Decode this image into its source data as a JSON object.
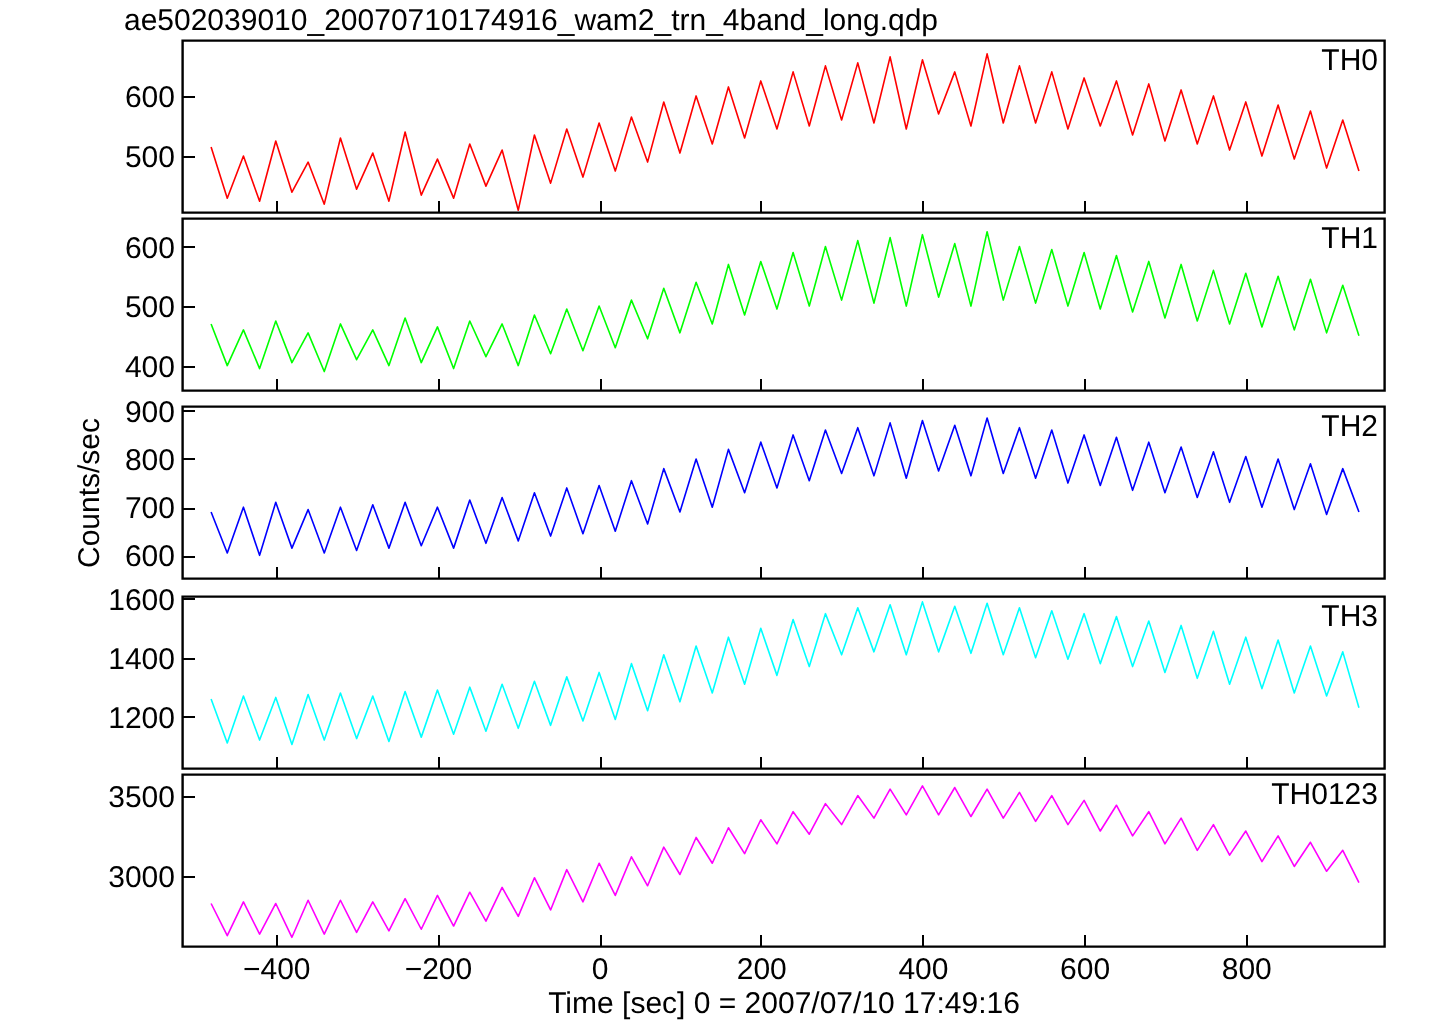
{
  "chart_data": [
    {
      "type": "line",
      "title": "ae502039010_20070710174916_wam2_trn_4band_long.qdp",
      "xlim": [
        -516,
        971
      ],
      "xticks": [
        -400,
        -200,
        0,
        200,
        400,
        600,
        800
      ],
      "ylim": [
        407,
        693
      ],
      "yticks": [
        500,
        600
      ],
      "tick_labels": "y",
      "x": [
        -480,
        -460,
        -440,
        -420,
        -400,
        -380,
        -360,
        -340,
        -320,
        -300,
        -280,
        -260,
        -240,
        -220,
        -200,
        -180,
        -160,
        -140,
        -120,
        -100,
        -80,
        -60,
        -40,
        -20,
        0,
        20,
        40,
        60,
        80,
        100,
        120,
        140,
        160,
        180,
        200,
        220,
        240,
        260,
        280,
        300,
        320,
        340,
        360,
        380,
        400,
        420,
        440,
        460,
        480,
        500,
        520,
        540,
        560,
        580,
        600,
        620,
        640,
        660,
        680,
        700,
        720,
        740,
        760,
        780,
        800,
        820,
        840,
        860,
        880,
        900,
        920,
        940
      ],
      "series": [
        {
          "name": "TH0",
          "color": "#ff0000",
          "values": [
            515,
            430,
            500,
            425,
            525,
            440,
            490,
            420,
            530,
            445,
            505,
            425,
            540,
            435,
            495,
            430,
            520,
            450,
            510,
            410,
            535,
            455,
            545,
            465,
            555,
            475,
            565,
            490,
            590,
            505,
            600,
            520,
            615,
            530,
            625,
            545,
            640,
            550,
            650,
            560,
            655,
            555,
            665,
            545,
            660,
            570,
            640,
            550,
            670,
            555,
            650,
            555,
            640,
            545,
            630,
            550,
            625,
            535,
            620,
            525,
            610,
            520,
            600,
            510,
            590,
            500,
            585,
            495,
            575,
            480,
            560,
            475
          ]
        }
      ]
    },
    {
      "type": "line",
      "xlim": [
        -516,
        971
      ],
      "xticks": [
        -400,
        -200,
        0,
        200,
        400,
        600,
        800
      ],
      "ylim": [
        359,
        648
      ],
      "yticks": [
        400,
        500,
        600
      ],
      "tick_labels": "y",
      "x": [
        -480,
        -460,
        -440,
        -420,
        -400,
        -380,
        -360,
        -340,
        -320,
        -300,
        -280,
        -260,
        -240,
        -220,
        -200,
        -180,
        -160,
        -140,
        -120,
        -100,
        -80,
        -60,
        -40,
        -20,
        0,
        20,
        40,
        60,
        80,
        100,
        120,
        140,
        160,
        180,
        200,
        220,
        240,
        260,
        280,
        300,
        320,
        340,
        360,
        380,
        400,
        420,
        440,
        460,
        480,
        500,
        520,
        540,
        560,
        580,
        600,
        620,
        640,
        660,
        680,
        700,
        720,
        740,
        760,
        780,
        800,
        820,
        840,
        860,
        880,
        900,
        920,
        940
      ],
      "series": [
        {
          "name": "TH1",
          "color": "#00ff00",
          "values": [
            470,
            400,
            460,
            395,
            475,
            405,
            455,
            390,
            470,
            410,
            460,
            400,
            480,
            405,
            465,
            395,
            475,
            415,
            470,
            400,
            485,
            420,
            495,
            425,
            500,
            430,
            510,
            445,
            530,
            455,
            540,
            470,
            570,
            485,
            575,
            495,
            590,
            500,
            600,
            510,
            610,
            505,
            615,
            500,
            620,
            515,
            605,
            500,
            625,
            510,
            600,
            505,
            595,
            500,
            590,
            495,
            585,
            490,
            575,
            480,
            570,
            475,
            560,
            470,
            555,
            465,
            550,
            460,
            545,
            455,
            535,
            450
          ]
        }
      ]
    },
    {
      "type": "line",
      "ylabel": "Counts/sec",
      "xlim": [
        -516,
        971
      ],
      "xticks": [
        -400,
        -200,
        0,
        200,
        400,
        600,
        800
      ],
      "ylim": [
        553,
        910
      ],
      "yticks": [
        600,
        700,
        800,
        900
      ],
      "tick_labels": "y",
      "x": [
        -480,
        -460,
        -440,
        -420,
        -400,
        -380,
        -360,
        -340,
        -320,
        -300,
        -280,
        -260,
        -240,
        -220,
        -200,
        -180,
        -160,
        -140,
        -120,
        -100,
        -80,
        -60,
        -40,
        -20,
        0,
        20,
        40,
        60,
        80,
        100,
        120,
        140,
        160,
        180,
        200,
        220,
        240,
        260,
        280,
        300,
        320,
        340,
        360,
        380,
        400,
        420,
        440,
        460,
        480,
        500,
        520,
        540,
        560,
        580,
        600,
        620,
        640,
        660,
        680,
        700,
        720,
        740,
        760,
        780,
        800,
        820,
        840,
        860,
        880,
        900,
        920,
        940
      ],
      "series": [
        {
          "name": "TH2",
          "color": "#0000ff",
          "values": [
            690,
            605,
            700,
            600,
            710,
            615,
            695,
            605,
            700,
            610,
            705,
            615,
            710,
            620,
            700,
            615,
            715,
            625,
            720,
            630,
            730,
            640,
            740,
            645,
            745,
            650,
            755,
            665,
            780,
            690,
            800,
            700,
            820,
            730,
            835,
            740,
            850,
            755,
            860,
            770,
            865,
            765,
            875,
            760,
            880,
            775,
            870,
            765,
            885,
            770,
            865,
            760,
            860,
            750,
            850,
            745,
            845,
            735,
            835,
            730,
            825,
            720,
            815,
            710,
            805,
            700,
            800,
            695,
            790,
            685,
            780,
            690
          ]
        }
      ]
    },
    {
      "type": "line",
      "xlim": [
        -516,
        971
      ],
      "xticks": [
        -400,
        -200,
        0,
        200,
        400,
        600,
        800
      ],
      "ylim": [
        1025,
        1610
      ],
      "yticks": [
        1200,
        1400,
        1600
      ],
      "tick_labels": "y",
      "x": [
        -480,
        -460,
        -440,
        -420,
        -400,
        -380,
        -360,
        -340,
        -320,
        -300,
        -280,
        -260,
        -240,
        -220,
        -200,
        -180,
        -160,
        -140,
        -120,
        -100,
        -80,
        -60,
        -40,
        -20,
        0,
        20,
        40,
        60,
        80,
        100,
        120,
        140,
        160,
        180,
        200,
        220,
        240,
        260,
        280,
        300,
        320,
        340,
        360,
        380,
        400,
        420,
        440,
        460,
        480,
        500,
        520,
        540,
        560,
        580,
        600,
        620,
        640,
        660,
        680,
        700,
        720,
        740,
        760,
        780,
        800,
        820,
        840,
        860,
        880,
        900,
        920,
        940
      ],
      "series": [
        {
          "name": "TH3",
          "color": "#00ffff",
          "values": [
            1260,
            1110,
            1270,
            1120,
            1265,
            1105,
            1275,
            1120,
            1280,
            1125,
            1270,
            1115,
            1285,
            1130,
            1290,
            1140,
            1300,
            1150,
            1310,
            1160,
            1320,
            1170,
            1335,
            1185,
            1350,
            1190,
            1380,
            1220,
            1410,
            1250,
            1440,
            1280,
            1470,
            1310,
            1500,
            1340,
            1530,
            1370,
            1550,
            1410,
            1570,
            1420,
            1580,
            1410,
            1590,
            1420,
            1575,
            1415,
            1585,
            1410,
            1570,
            1400,
            1560,
            1395,
            1550,
            1380,
            1540,
            1370,
            1525,
            1350,
            1510,
            1330,
            1490,
            1310,
            1470,
            1295,
            1460,
            1280,
            1440,
            1270,
            1420,
            1230
          ]
        }
      ]
    },
    {
      "type": "line",
      "xlabel": "Time [sec] 0 = 2007/07/10 17:49:16",
      "xlim": [
        -516,
        971
      ],
      "xticks": [
        -400,
        -200,
        0,
        200,
        400,
        600,
        800
      ],
      "ylim": [
        2566,
        3634
      ],
      "yticks": [
        3000,
        3500
      ],
      "x": [
        -480,
        -460,
        -440,
        -420,
        -400,
        -380,
        -360,
        -340,
        -320,
        -300,
        -280,
        -260,
        -240,
        -220,
        -200,
        -180,
        -160,
        -140,
        -120,
        -100,
        -80,
        -60,
        -40,
        -20,
        0,
        20,
        40,
        60,
        80,
        100,
        120,
        140,
        160,
        180,
        200,
        220,
        240,
        260,
        280,
        300,
        320,
        340,
        360,
        380,
        400,
        420,
        440,
        460,
        480,
        500,
        520,
        540,
        560,
        580,
        600,
        620,
        640,
        660,
        680,
        700,
        720,
        740,
        760,
        780,
        800,
        820,
        840,
        860,
        880,
        900,
        920,
        940
      ],
      "series": [
        {
          "name": "TH0123",
          "color": "#ff00ff",
          "values": [
            2830,
            2630,
            2840,
            2640,
            2830,
            2620,
            2850,
            2640,
            2850,
            2650,
            2840,
            2660,
            2860,
            2670,
            2880,
            2690,
            2900,
            2720,
            2930,
            2750,
            2990,
            2790,
            3040,
            2840,
            3080,
            2880,
            3120,
            2940,
            3180,
            3010,
            3240,
            3080,
            3300,
            3140,
            3350,
            3200,
            3400,
            3260,
            3450,
            3320,
            3500,
            3360,
            3540,
            3380,
            3560,
            3380,
            3550,
            3370,
            3540,
            3360,
            3520,
            3340,
            3500,
            3320,
            3470,
            3280,
            3440,
            3250,
            3400,
            3200,
            3360,
            3160,
            3320,
            3130,
            3280,
            3090,
            3250,
            3060,
            3210,
            3030,
            3160,
            2960
          ]
        }
      ]
    }
  ]
}
